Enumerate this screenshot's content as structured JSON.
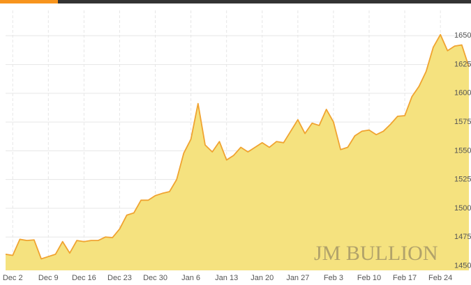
{
  "chart_data": {
    "type": "area",
    "categories": [
      null,
      "Dec 2",
      null,
      null,
      null,
      null,
      "Dec 9",
      null,
      null,
      null,
      null,
      "Dec 16",
      null,
      null,
      null,
      null,
      "Dec 23",
      null,
      null,
      null,
      null,
      "Dec 30",
      null,
      null,
      null,
      null,
      "Jan 6",
      null,
      null,
      null,
      null,
      "Jan 13",
      null,
      null,
      null,
      null,
      "Jan 20",
      null,
      null,
      null,
      null,
      "Jan 27",
      null,
      null,
      null,
      null,
      "Feb 3",
      null,
      null,
      null,
      null,
      "Feb 10",
      null,
      null,
      null,
      null,
      "Feb 17",
      null,
      null,
      null,
      null,
      "Feb 24",
      null,
      null,
      null,
      null
    ],
    "values": [
      1460,
      1459,
      1473,
      1472,
      1472.5,
      1456,
      1458,
      1460,
      1471,
      1461,
      1472,
      1471,
      1472,
      1472,
      1475,
      1474.5,
      1482,
      1494,
      1496,
      1507,
      1507,
      1511,
      1513,
      1514.5,
      1525,
      1548,
      1560,
      1591,
      1555,
      1549,
      1558,
      1542,
      1546,
      1553,
      1549,
      1553,
      1557,
      1553,
      1558,
      1557,
      1567,
      1577,
      1565,
      1574,
      1572,
      1586,
      1575,
      1551,
      1553,
      1563,
      1567,
      1568,
      1564,
      1567,
      1573,
      1580,
      1580.5,
      1597,
      1606,
      1619,
      1640,
      1651,
      1637,
      1641,
      1642,
      1623
    ],
    "color": "#f5e27f",
    "line_color": "#f0a330",
    "ylim": [
      1446,
      1672
    ],
    "yticks": [
      1450,
      1475,
      1500,
      1525,
      1550,
      1575,
      1600,
      1625,
      1650
    ],
    "grid": true,
    "watermark": "JM BULLION"
  }
}
